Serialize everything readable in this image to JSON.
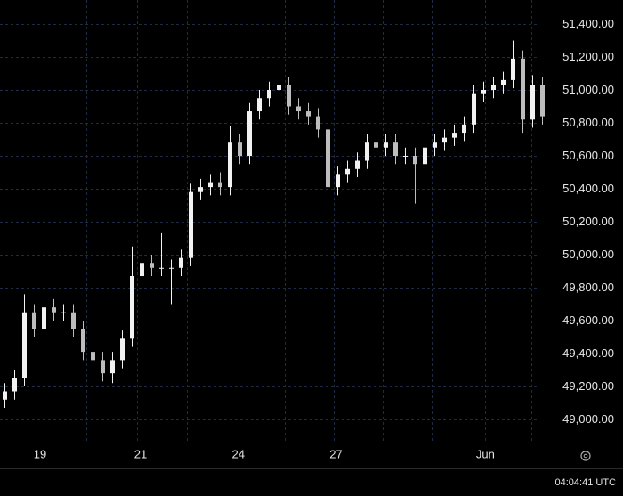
{
  "chart_data": {
    "type": "candlestick",
    "open": [
      49120,
      49170,
      49250,
      49650,
      49550,
      49680,
      49650,
      49650,
      49550,
      49410,
      49360,
      49280,
      49360,
      49490,
      49870,
      49950,
      49920,
      49920,
      49920,
      49980,
      50380,
      50410,
      50440,
      50410,
      50680,
      50600,
      50870,
      50950,
      51000,
      51030,
      50900,
      50870,
      50840,
      50760,
      50410,
      50490,
      50520,
      50570,
      50680,
      50650,
      50680,
      50600,
      50600,
      50550,
      50650,
      50680,
      50710,
      50740,
      50790,
      50980,
      51000,
      51030,
      51060,
      51190,
      50820,
      51030
    ],
    "high": [
      49220,
      49300,
      49760,
      49700,
      49730,
      49730,
      49700,
      49700,
      49600,
      49460,
      49410,
      49410,
      49540,
      50050,
      50000,
      50000,
      50130,
      49970,
      50030,
      50430,
      50460,
      50490,
      50500,
      50780,
      50730,
      50920,
      51000,
      51050,
      51120,
      51080,
      50950,
      50920,
      50890,
      50810,
      50540,
      50570,
      50620,
      50730,
      50730,
      50730,
      50730,
      50650,
      50650,
      50700,
      50730,
      50760,
      50790,
      50840,
      51030,
      51050,
      51080,
      51110,
      51300,
      51240,
      51090,
      51080
    ],
    "low": [
      49070,
      49120,
      49200,
      49500,
      49500,
      49600,
      49600,
      49500,
      49360,
      49310,
      49230,
      49220,
      49310,
      49440,
      49820,
      49870,
      49870,
      49700,
      49870,
      49930,
      50330,
      50360,
      50360,
      50360,
      50550,
      50550,
      50820,
      50900,
      50950,
      50850,
      50820,
      50790,
      50710,
      50340,
      50360,
      50440,
      50470,
      50520,
      50600,
      50600,
      50550,
      50550,
      50310,
      50500,
      50600,
      50630,
      50660,
      50690,
      50740,
      50930,
      50950,
      50980,
      51010,
      50740,
      50770,
      50790
    ],
    "close": [
      49170,
      49250,
      49650,
      49550,
      49680,
      49650,
      49650,
      49550,
      49410,
      49360,
      49280,
      49360,
      49490,
      49870,
      49950,
      49920,
      49920,
      49920,
      49980,
      50380,
      50410,
      50440,
      50410,
      50680,
      50600,
      50870,
      50950,
      51000,
      51030,
      50900,
      50870,
      50840,
      50760,
      50410,
      50490,
      50520,
      50570,
      50680,
      50650,
      50680,
      50600,
      50600,
      50550,
      50650,
      50680,
      50710,
      50740,
      50790,
      50980,
      51000,
      51030,
      51060,
      51190,
      50820,
      51030,
      50840
    ],
    "up_color": "#f2f2f2",
    "down_color": "#bdbdbd",
    "xlim": [
      -0.5,
      56
    ],
    "xticks": [
      {
        "value": 3.6,
        "label": "19"
      },
      {
        "value": 13.9,
        "label": "21"
      },
      {
        "value": 23.9,
        "label": "24"
      },
      {
        "value": 33.9,
        "label": "27"
      },
      {
        "value": 49.2,
        "label": "Jun"
      }
    ],
    "xgrid": [
      3.1,
      8.3,
      13.5,
      18.6,
      23.9,
      28.7,
      33.7,
      38.7,
      43.7,
      49.2,
      53.9
    ],
    "ylim": [
      48870,
      51546
    ],
    "yticks": [
      {
        "value": 49000,
        "label": "49,000.00"
      },
      {
        "value": 49200,
        "label": "49,200.00"
      },
      {
        "value": 49400,
        "label": "49,400.00"
      },
      {
        "value": 49600,
        "label": "49,600.00"
      },
      {
        "value": 49800,
        "label": "49,800.00"
      },
      {
        "value": 50000,
        "label": "50,000.00"
      },
      {
        "value": 50200,
        "label": "50,200.00"
      },
      {
        "value": 50400,
        "label": "50,400.00"
      },
      {
        "value": 50600,
        "label": "50,600.00"
      },
      {
        "value": 50800,
        "label": "50,800.00"
      },
      {
        "value": 51000,
        "label": "51,000.00"
      },
      {
        "value": 51200,
        "label": "51,200.00"
      },
      {
        "value": 51400,
        "label": "51,400.00"
      }
    ],
    "grid": true,
    "clock": "04:04:41 UTC"
  }
}
